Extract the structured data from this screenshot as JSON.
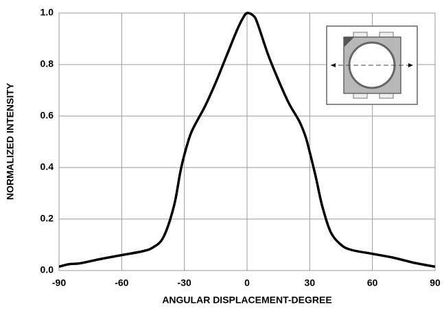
{
  "chart_data": {
    "type": "line",
    "x_label": "ANGULAR DISPLACEMENT-DEGREE",
    "y_label": "NORMALIZED INTENSITY",
    "x": [
      -90,
      -85,
      -80,
      -70,
      -60,
      -50,
      -45,
      -40,
      -35,
      -32,
      -30,
      -27,
      -24,
      -20,
      -15,
      -10,
      -5,
      -2,
      0,
      3,
      5,
      10,
      15,
      20,
      25,
      28,
      30,
      33,
      36,
      40,
      45,
      50,
      60,
      70,
      80,
      90
    ],
    "series": [
      {
        "name": "intensity",
        "color": "#000000",
        "values": [
          0.015,
          0.025,
          0.028,
          0.045,
          0.06,
          0.075,
          0.09,
          0.13,
          0.25,
          0.38,
          0.45,
          0.53,
          0.58,
          0.64,
          0.73,
          0.83,
          0.93,
          0.98,
          1.0,
          0.99,
          0.96,
          0.84,
          0.74,
          0.65,
          0.58,
          0.52,
          0.46,
          0.36,
          0.25,
          0.15,
          0.1,
          0.08,
          0.065,
          0.05,
          0.03,
          0.015
        ]
      }
    ],
    "xlim": [
      -90,
      90
    ],
    "xticks": [
      -90,
      -60,
      -30,
      0,
      30,
      60,
      90
    ],
    "ylim": [
      0,
      1
    ],
    "yticks": [
      {
        "value": 0,
        "label": "0.0"
      },
      0.2,
      0.4,
      0.6,
      0.8,
      {
        "value": 1,
        "label": "1.0"
      }
    ],
    "grid": true
  }
}
